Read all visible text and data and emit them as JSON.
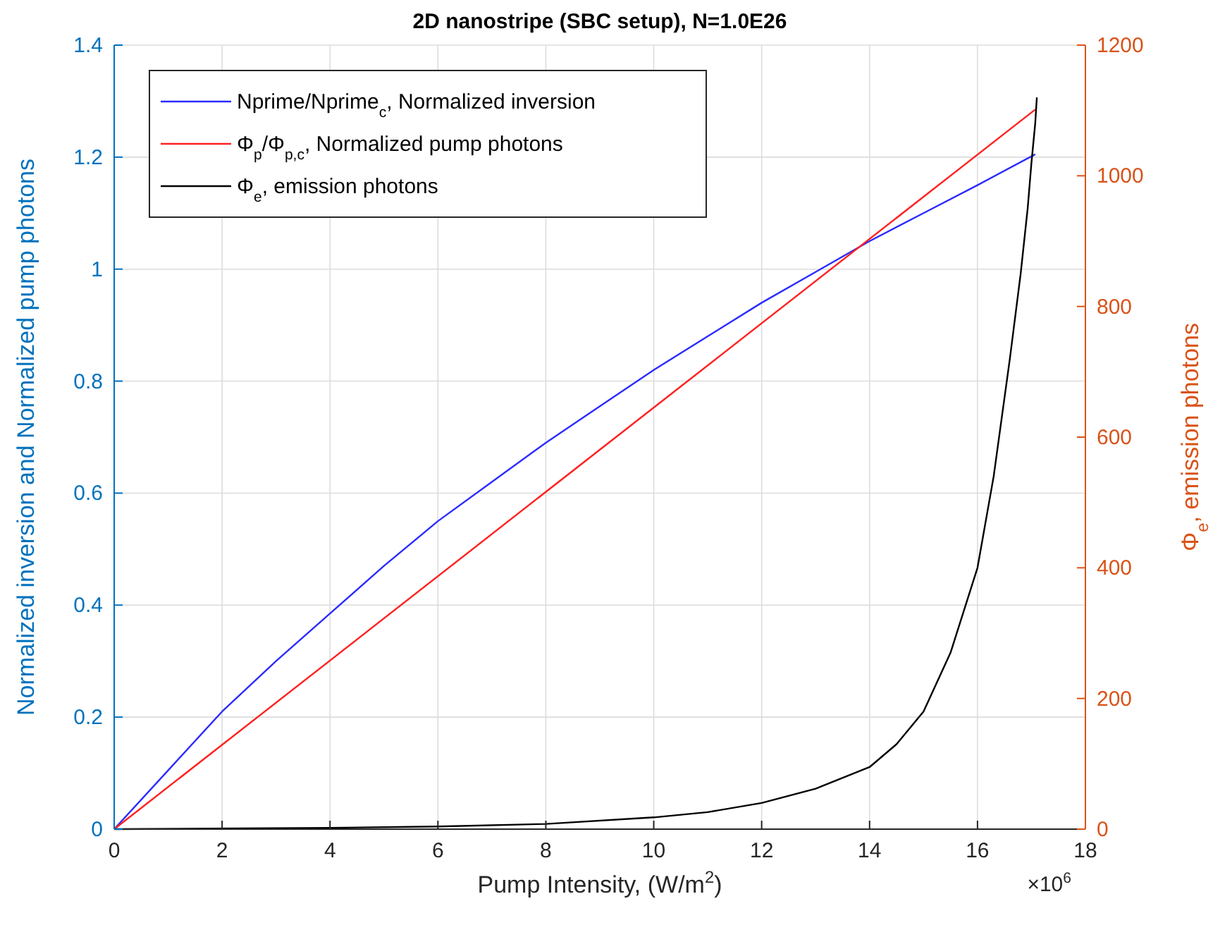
{
  "chart_data": {
    "type": "line",
    "title": "2D nanostripe (SBC setup), N=1.0E26",
    "xlabel": "Pump Intensity, (W/m$^{2}$)",
    "ylabel": "Normalized inversion and Normalized pump photons",
    "y2label": "Φ$_{e}$, emission photons",
    "annotations": [
      "×10$^{6}$"
    ],
    "xlim": [
      0,
      18
    ],
    "xticks": [
      0,
      2,
      4,
      6,
      8,
      10,
      12,
      14,
      16,
      18
    ],
    "ylim": [
      0,
      1.4
    ],
    "yticks": [
      0,
      0.2,
      0.4,
      0.6,
      0.8,
      1,
      1.2,
      1.4
    ],
    "y2lim": [
      0,
      1200
    ],
    "y2ticks": [
      0,
      200,
      400,
      600,
      800,
      1000,
      1200
    ],
    "grid": true,
    "legend": "top left",
    "line_style": "solid",
    "marker": "none",
    "series": [
      {
        "name": "Nprime/Nprime$_{c}$, Normalized inversion",
        "color": "#2b2bff",
        "x": [
          0,
          1,
          2,
          3,
          4,
          5,
          6,
          7,
          8,
          9,
          10,
          11,
          12,
          13,
          14,
          15,
          16,
          17.07
        ],
        "values": [
          0,
          0.105,
          0.21,
          0.3,
          0.385,
          0.47,
          0.55,
          0.62,
          0.69,
          0.755,
          0.82,
          0.88,
          0.94,
          0.995,
          1.05,
          1.1,
          1.15,
          1.205
        ]
      },
      {
        "name": "Φ$_{p}$/Φ$_{p,c}$, Normalized pump photons",
        "color": "#ff2020",
        "x": [
          0,
          17.07
        ],
        "values": [
          0,
          1.285
        ]
      },
      {
        "name": "Φ$_{e}$, emission photons",
        "color": "#000000",
        "axis": "y2",
        "x": [
          0,
          4,
          6,
          8,
          10,
          11,
          12,
          13,
          14,
          14.5,
          15,
          15.5,
          16,
          16.3,
          16.6,
          16.8,
          16.93,
          17.0,
          17.07,
          17.1
        ],
        "values": [
          0,
          2,
          4,
          8,
          18,
          26,
          40,
          62,
          95,
          130,
          180,
          270,
          400,
          540,
          720,
          850,
          950,
          1020,
          1080,
          1120
        ]
      }
    ]
  }
}
